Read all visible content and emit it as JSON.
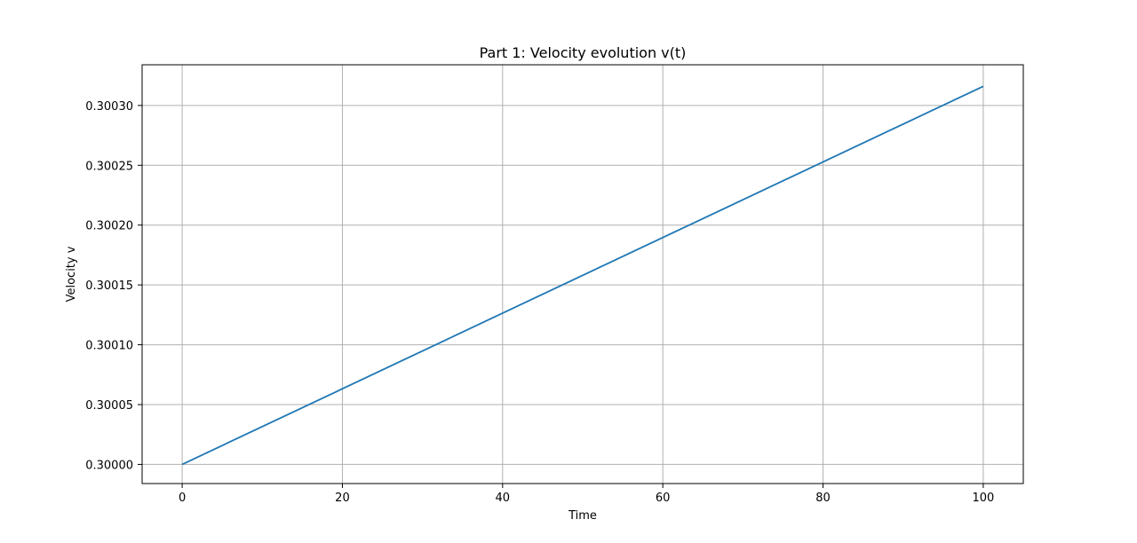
{
  "chart_data": {
    "type": "line",
    "title": "Part 1: Velocity evolution v(t)",
    "xlabel": "Time",
    "ylabel": "Velocity v",
    "xlim": [
      -5,
      105
    ],
    "ylim": [
      0.299984,
      0.300334
    ],
    "x_ticks": [
      0,
      20,
      40,
      60,
      80,
      100
    ],
    "x_tick_labels": [
      "0",
      "20",
      "40",
      "60",
      "80",
      "100"
    ],
    "y_ticks": [
      0.3,
      0.30005,
      0.3001,
      0.30015,
      0.3002,
      0.30025,
      0.3003
    ],
    "y_tick_labels": [
      "0.30000",
      "0.30005",
      "0.30010",
      "0.30015",
      "0.30020",
      "0.30025",
      "0.30030"
    ],
    "grid": true,
    "series": [
      {
        "color": "#1f77b4",
        "x": [
          0,
          100
        ],
        "y": [
          0.3,
          0.300316
        ]
      }
    ]
  }
}
